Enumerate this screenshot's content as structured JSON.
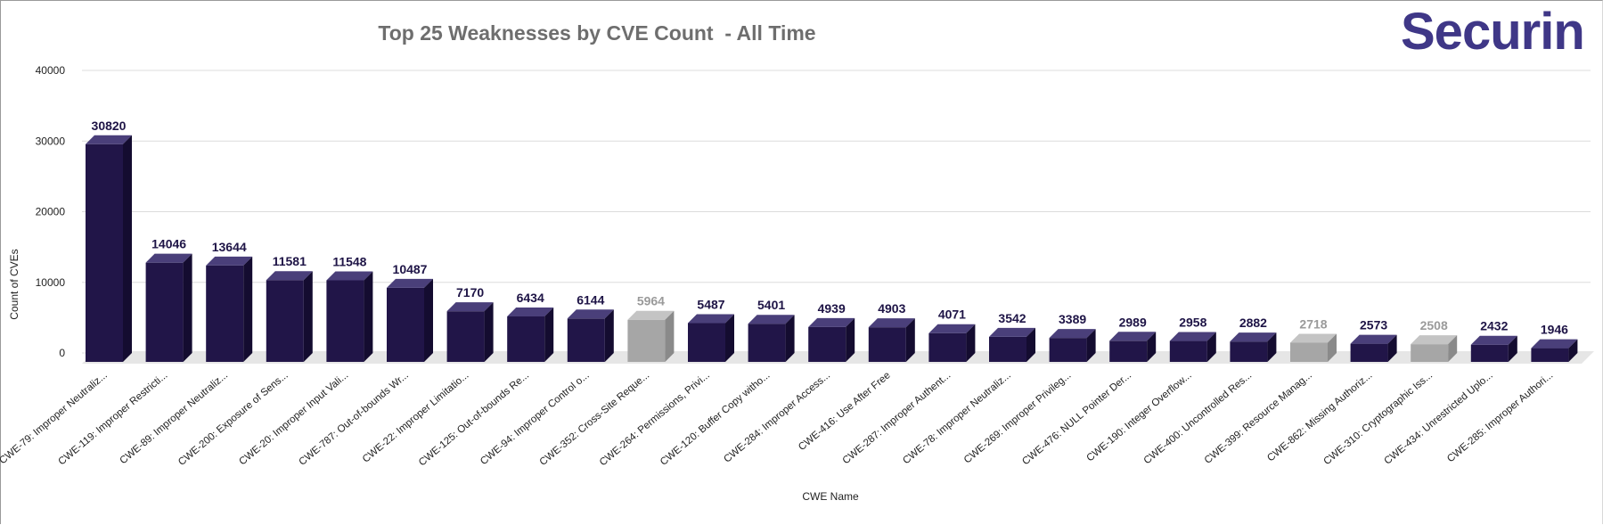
{
  "brand": {
    "logo_text": "Securin",
    "logo_color": "#3f3787",
    "accent_color": "#e07b2a"
  },
  "colors": {
    "bar_primary": "#211548",
    "bar_primary_top": "#4a3f7a",
    "bar_primary_side": "#140c30",
    "bar_muted": "#a6a6a6",
    "bar_muted_top": "#c4c4c4",
    "bar_muted_side": "#8a8a8a",
    "label_primary": "#1e1446",
    "label_muted": "#9a9a9a",
    "grid": "#dcdcdc",
    "floor": "#e6e6e6"
  },
  "chart_data": {
    "type": "bar",
    "title": "Top 25 Weaknesses by CVE Count  - All Time",
    "xlabel": "CWE Name",
    "ylabel": "Count of CVEs",
    "ylim": [
      0,
      40000
    ],
    "yticks": [
      "40000",
      "30000",
      "20000",
      "10000",
      "0"
    ],
    "grid": true,
    "legend": "none",
    "categories": [
      "CWE-79: Improper Neutraliz...",
      "CWE-119: Improper Restricti...",
      "CWE-89: Improper Neutraliz...",
      "CWE-200: Exposure of Sens...",
      "CWE-20: Improper Input Vali...",
      "CWE-787: Out-of-bounds Wr...",
      "CWE-22: Improper Limitatio...",
      "CWE-125: Out-of-bounds Re...",
      "CWE-94: Improper Control o...",
      "CWE-352: Cross-Site Reque...",
      "CWE-264: Permissions, Privi...",
      "CWE-120: Buffer Copy witho...",
      "CWE-284: Improper Access...",
      "CWE-416: Use After Free",
      "CWE-287: Improper Authent...",
      "CWE-78: Improper Neutraliz...",
      "CWE-269: Improper Privileg...",
      "CWE-476: NULL Pointer Der...",
      "CWE-190: Integer Overflow...",
      "CWE-400: Uncontrolled Res...",
      "CWE-399: Resource Manag...",
      "CWE-862: Missing Authoriz...",
      "CWE-310: Cryptographic Iss...",
      "CWE-434: Unrestricted Uplo...",
      "CWE-285: Improper Authori..."
    ],
    "values": [
      30820,
      14046,
      13644,
      11581,
      11548,
      10487,
      7170,
      6434,
      6144,
      5964,
      5487,
      5401,
      4939,
      4903,
      4071,
      3542,
      3389,
      2989,
      2958,
      2882,
      2718,
      2573,
      2508,
      2432,
      1946
    ],
    "value_labels": [
      "30820",
      "14046",
      "13644",
      "11581",
      "11548",
      "10487",
      "7170",
      "6434",
      "6144",
      "5964",
      "5487",
      "5401",
      "4939",
      "4903",
      "4071",
      "3542",
      "3389",
      "2989",
      "2958",
      "2882",
      "2718",
      "2573",
      "2508",
      "2432",
      "1946"
    ],
    "muted": [
      false,
      false,
      false,
      false,
      false,
      false,
      false,
      false,
      false,
      true,
      false,
      false,
      false,
      false,
      false,
      false,
      false,
      false,
      false,
      false,
      true,
      false,
      true,
      false,
      false
    ]
  }
}
